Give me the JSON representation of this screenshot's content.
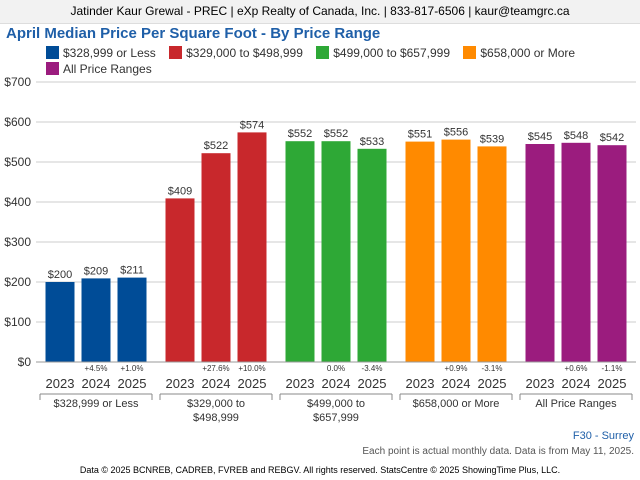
{
  "header": {
    "agent_line": "Jatinder Kaur Grewal - PREC | eXp Realty of Canada, Inc. | 833-817-6506 | kaur@teamgrc.ca"
  },
  "region_label": "F30 - Surrey",
  "note": "Each point is actual monthly data. Data is from May 11, 2025.",
  "footer": "Data © 2025 BCNREB, CADREB, FVREB and REBGV. All rights reserved. StatsCentre © 2025 ShowingTime Plus, LLC.",
  "chart_data": {
    "type": "bar",
    "title": "April Median Price Per Square Foot - By Price Range",
    "xlabel": "",
    "ylabel": "",
    "ylim": [
      0,
      700
    ],
    "yticks": [
      "$0",
      "$100",
      "$200",
      "$300",
      "$400",
      "$500",
      "$600",
      "$700"
    ],
    "grid": true,
    "legend_placement": "top",
    "years": [
      "2023",
      "2024",
      "2025"
    ],
    "groups": [
      {
        "legend": "$328,999 or Less",
        "axis_label": [
          "$328,999 or Less"
        ],
        "color": "#004c97",
        "values": [
          200,
          209,
          211
        ],
        "value_labels": [
          "$200",
          "$209",
          "$211"
        ],
        "changes": [
          "",
          "+4.5%",
          "+1.0%"
        ]
      },
      {
        "legend": "$329,000 to $498,999",
        "axis_label": [
          "$329,000 to",
          "$498,999"
        ],
        "color": "#c8282c",
        "values": [
          409,
          522,
          574
        ],
        "value_labels": [
          "$409",
          "$522",
          "$574"
        ],
        "changes": [
          "",
          "+27.6%",
          "+10.0%"
        ]
      },
      {
        "legend": "$499,000 to $657,999",
        "axis_label": [
          "$499,000 to",
          "$657,999"
        ],
        "color": "#2ea836",
        "values": [
          552,
          552,
          533
        ],
        "value_labels": [
          "$552",
          "$552",
          "$533"
        ],
        "changes": [
          "",
          "0.0%",
          "-3.4%"
        ]
      },
      {
        "legend": "$658,000 or More",
        "axis_label": [
          "$658,000 or More"
        ],
        "color": "#ff8a00",
        "values": [
          551,
          556,
          539
        ],
        "value_labels": [
          "$551",
          "$556",
          "$539"
        ],
        "changes": [
          "",
          "+0.9%",
          "-3.1%"
        ]
      },
      {
        "legend": "All Price Ranges",
        "axis_label": [
          "All Price Ranges"
        ],
        "color": "#9b1c7e",
        "values": [
          545,
          548,
          542
        ],
        "value_labels": [
          "$545",
          "$548",
          "$542"
        ],
        "changes": [
          "",
          "+0.6%",
          "-1.1%"
        ]
      }
    ]
  }
}
